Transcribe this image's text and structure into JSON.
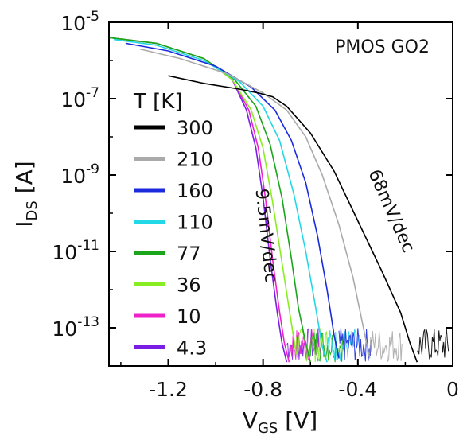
{
  "chart_data": {
    "type": "line",
    "annotation_title": "PMOS GO2",
    "xlabel_main": "V",
    "xlabel_sub": "GS",
    "xlabel_unit": " [V]",
    "ylabel_main": "I",
    "ylabel_sub": "DS",
    "ylabel_unit": " [A]",
    "xlim": [
      -1.45,
      0
    ],
    "ylim_log10": [
      -14,
      -5
    ],
    "yscale": "log",
    "x_ticks": [
      -1.2,
      -0.8,
      -0.4,
      0
    ],
    "x_tick_labels": [
      "-1.2",
      "-0.8",
      "-0.4",
      "0"
    ],
    "y_ticks_exp": [
      -5,
      -7,
      -9,
      -11,
      -13
    ],
    "y_tick_base": "10",
    "y_tick_exps": [
      "-5",
      "-7",
      "-9",
      "-11",
      "-13"
    ],
    "legend_title": "T [K]",
    "legend_position": "left",
    "annotations": [
      {
        "text": "68mV/dec",
        "x": -0.28,
        "y_log10": -10.0,
        "rotation": 66
      },
      {
        "text": "9.5mV/dec",
        "x": -0.81,
        "y_log10": -10.6,
        "rotation": 84
      }
    ],
    "series": [
      {
        "name": "300",
        "color": "#000000",
        "x": [
          -1.2,
          -1.05,
          -0.9,
          -0.82,
          -0.76,
          -0.7,
          -0.6,
          -0.5,
          -0.4,
          -0.3,
          -0.22,
          -0.18,
          -0.15
        ],
        "y_log10": [
          -6.4,
          -6.6,
          -6.75,
          -6.85,
          -6.95,
          -7.2,
          -7.9,
          -8.9,
          -10.2,
          -11.5,
          -12.6,
          -13.4,
          -13.9
        ]
      },
      {
        "name": "210",
        "color": "#aaaaaa",
        "x": [
          -1.32,
          -1.15,
          -0.95,
          -0.8,
          -0.7,
          -0.62,
          -0.55,
          -0.48,
          -0.42,
          -0.38,
          -0.35
        ],
        "y_log10": [
          -5.7,
          -5.95,
          -6.35,
          -6.85,
          -7.3,
          -8.0,
          -9.0,
          -10.3,
          -11.7,
          -12.9,
          -13.8
        ]
      },
      {
        "name": "160",
        "color": "#1a2adc",
        "x": [
          -1.38,
          -1.2,
          -1.0,
          -0.85,
          -0.75,
          -0.68,
          -0.62,
          -0.57,
          -0.53,
          -0.5,
          -0.48
        ],
        "y_log10": [
          -5.55,
          -5.75,
          -6.15,
          -6.7,
          -7.3,
          -8.1,
          -9.2,
          -10.6,
          -12.0,
          -13.2,
          -13.8
        ]
      },
      {
        "name": "110",
        "color": "#22d8e6",
        "x": [
          -1.43,
          -1.25,
          -1.05,
          -0.9,
          -0.8,
          -0.73,
          -0.67,
          -0.62,
          -0.58,
          -0.55,
          -0.53
        ],
        "y_log10": [
          -5.45,
          -5.6,
          -6.0,
          -6.55,
          -7.2,
          -8.1,
          -9.5,
          -11.0,
          -12.4,
          -13.5,
          -13.9
        ]
      },
      {
        "name": "77",
        "color": "#1aa51a",
        "x": [
          -1.45,
          -1.25,
          -1.05,
          -0.92,
          -0.83,
          -0.77,
          -0.72,
          -0.68,
          -0.65,
          -0.62,
          -0.6
        ],
        "y_log10": [
          -5.4,
          -5.55,
          -5.95,
          -6.5,
          -7.2,
          -8.2,
          -9.6,
          -11.2,
          -12.5,
          -13.4,
          -13.9
        ]
      },
      {
        "name": "36",
        "color": "#88ee22",
        "x": [
          -1.45,
          -1.25,
          -1.05,
          -0.93,
          -0.85,
          -0.8,
          -0.76,
          -0.72,
          -0.69,
          -0.67,
          -0.66
        ],
        "y_log10": [
          -5.4,
          -5.55,
          -5.95,
          -6.5,
          -7.3,
          -8.3,
          -9.7,
          -11.3,
          -12.5,
          -13.3,
          -13.7
        ]
      },
      {
        "name": "10",
        "color": "#ee22c8",
        "x": [
          -1.45,
          -1.25,
          -1.05,
          -0.93,
          -0.86,
          -0.82,
          -0.79,
          -0.76,
          -0.73,
          -0.71,
          -0.69
        ],
        "y_log10": [
          -5.4,
          -5.55,
          -5.95,
          -6.5,
          -7.3,
          -8.3,
          -9.6,
          -11.2,
          -12.6,
          -13.4,
          -13.9
        ]
      },
      {
        "name": "4.3",
        "color": "#7a1ee6",
        "x": [
          -1.45,
          -1.25,
          -1.05,
          -0.93,
          -0.87,
          -0.83,
          -0.8,
          -0.77,
          -0.74,
          -0.72,
          -0.7
        ],
        "y_log10": [
          -5.4,
          -5.55,
          -5.95,
          -6.5,
          -7.3,
          -8.3,
          -9.6,
          -11.2,
          -12.6,
          -13.4,
          -13.9
        ]
      }
    ]
  }
}
